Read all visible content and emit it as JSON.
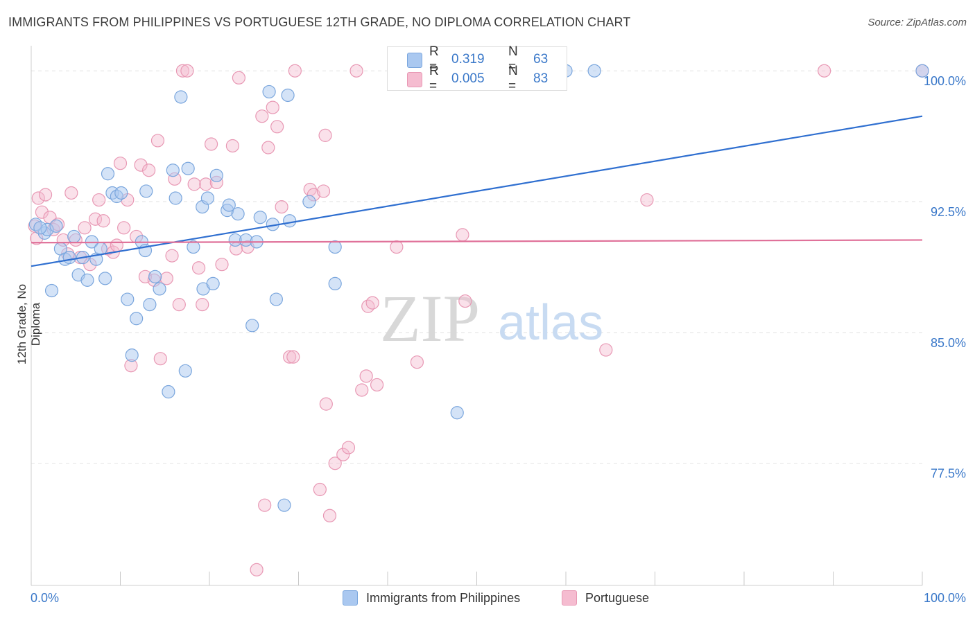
{
  "title": "IMMIGRANTS FROM PHILIPPINES VS PORTUGUESE 12TH GRADE, NO DIPLOMA CORRELATION CHART",
  "source": "Source: ZipAtlas.com",
  "watermark": {
    "zip": "ZIP",
    "atlas": "atlas"
  },
  "stats": {
    "blue": {
      "r_label": "R =",
      "r_value": "0.319",
      "n_label": "N =",
      "n_value": "63"
    },
    "pink": {
      "r_label": "R =",
      "r_value": "0.005",
      "n_label": "N =",
      "n_value": "83"
    }
  },
  "legend": {
    "blue": "Immigrants from Philippines",
    "pink": "Portuguese"
  },
  "colors": {
    "blue_fill": "#aac8f0",
    "blue_stroke": "#7aa6dd",
    "blue_line": "#2f6fd0",
    "pink_fill": "#f5bcd0",
    "pink_stroke": "#e898b4",
    "pink_line": "#e0729a",
    "tick_label": "#3a78c9"
  },
  "chart_data": {
    "type": "scatter",
    "xlabel": "",
    "ylabel": "12th Grade, No Diploma",
    "xlim": [
      0,
      100
    ],
    "ylim": [
      70.5,
      101.2
    ],
    "x_tick_labels": [
      {
        "value": 0,
        "label": "0.0%"
      },
      {
        "value": 100,
        "label": "100.0%"
      }
    ],
    "y_tick_labels": [
      {
        "value": 100,
        "label": "100.0%"
      },
      {
        "value": 92.5,
        "label": "92.5%"
      },
      {
        "value": 85,
        "label": "85.0%"
      },
      {
        "value": 77.5,
        "label": "77.5%"
      }
    ],
    "grid": true,
    "legend_position": "bottom",
    "series": [
      {
        "name": "Immigrants from Philippines",
        "trend": {
          "x": [
            0,
            100
          ],
          "y": [
            88.8,
            97.4
          ]
        },
        "points": [
          [
            0.5,
            91.2
          ],
          [
            1.5,
            90.7
          ],
          [
            1.8,
            90.9
          ],
          [
            2.3,
            87.4
          ],
          [
            2.8,
            91.1
          ],
          [
            3.3,
            89.8
          ],
          [
            3.8,
            89.2
          ],
          [
            4.3,
            89.3
          ],
          [
            4.8,
            90.5
          ],
          [
            5.3,
            88.3
          ],
          [
            5.8,
            89.3
          ],
          [
            6.3,
            88.0
          ],
          [
            6.8,
            90.2
          ],
          [
            7.3,
            89.2
          ],
          [
            7.8,
            89.8
          ],
          [
            8.3,
            88.1
          ],
          [
            8.6,
            94.1
          ],
          [
            9.1,
            93.0
          ],
          [
            9.6,
            92.8
          ],
          [
            10.1,
            93.0
          ],
          [
            10.8,
            86.9
          ],
          [
            11.3,
            83.7
          ],
          [
            11.8,
            85.8
          ],
          [
            12.4,
            90.2
          ],
          [
            12.8,
            89.7
          ],
          [
            12.9,
            93.1
          ],
          [
            13.3,
            86.6
          ],
          [
            13.9,
            88.2
          ],
          [
            14.4,
            87.5
          ],
          [
            15.4,
            81.6
          ],
          [
            15.9,
            94.3
          ],
          [
            16.2,
            92.7
          ],
          [
            16.8,
            98.5
          ],
          [
            17.3,
            82.8
          ],
          [
            17.6,
            94.4
          ],
          [
            18.2,
            89.9
          ],
          [
            19.2,
            92.2
          ],
          [
            19.3,
            87.5
          ],
          [
            19.8,
            92.7
          ],
          [
            20.4,
            87.8
          ],
          [
            20.8,
            94.0
          ],
          [
            22.0,
            92.0
          ],
          [
            22.2,
            92.3
          ],
          [
            22.9,
            90.3
          ],
          [
            23.2,
            91.8
          ],
          [
            24.1,
            90.3
          ],
          [
            24.8,
            85.4
          ],
          [
            25.3,
            90.2
          ],
          [
            25.7,
            91.6
          ],
          [
            26.7,
            98.8
          ],
          [
            27.1,
            91.2
          ],
          [
            27.5,
            86.9
          ],
          [
            28.4,
            75.1
          ],
          [
            28.8,
            98.6
          ],
          [
            29.0,
            91.4
          ],
          [
            31.2,
            92.5
          ],
          [
            34.1,
            89.9
          ],
          [
            34.1,
            87.8
          ],
          [
            47.8,
            80.4
          ],
          [
            60.0,
            100.0
          ],
          [
            63.2,
            100.0
          ],
          [
            100.0,
            100.0
          ],
          [
            1.0,
            91.0
          ]
        ]
      },
      {
        "name": "Portuguese",
        "trend": {
          "x": [
            0,
            100
          ],
          "y": [
            90.15,
            90.3
          ]
        },
        "points": [
          [
            0.4,
            91.1
          ],
          [
            0.8,
            92.7
          ],
          [
            1.2,
            91.9
          ],
          [
            1.6,
            92.9
          ],
          [
            2.1,
            91.6
          ],
          [
            2.5,
            90.9
          ],
          [
            3.0,
            91.2
          ],
          [
            3.6,
            90.3
          ],
          [
            4.1,
            89.5
          ],
          [
            4.5,
            93.0
          ],
          [
            5.0,
            90.3
          ],
          [
            5.5,
            89.3
          ],
          [
            6.0,
            91.0
          ],
          [
            6.6,
            88.9
          ],
          [
            7.2,
            91.5
          ],
          [
            7.6,
            92.6
          ],
          [
            8.1,
            91.4
          ],
          [
            8.6,
            89.8
          ],
          [
            9.2,
            89.6
          ],
          [
            9.6,
            90.0
          ],
          [
            10.0,
            94.7
          ],
          [
            10.4,
            91.0
          ],
          [
            10.8,
            92.6
          ],
          [
            11.2,
            83.1
          ],
          [
            11.8,
            90.5
          ],
          [
            12.3,
            94.6
          ],
          [
            12.8,
            88.2
          ],
          [
            13.2,
            94.3
          ],
          [
            13.8,
            88.0
          ],
          [
            14.2,
            96.0
          ],
          [
            14.5,
            83.5
          ],
          [
            15.2,
            88.1
          ],
          [
            15.8,
            89.4
          ],
          [
            16.1,
            93.8
          ],
          [
            16.6,
            86.6
          ],
          [
            17.0,
            100.0
          ],
          [
            17.5,
            100.0
          ],
          [
            18.3,
            93.5
          ],
          [
            18.8,
            88.7
          ],
          [
            19.2,
            86.6
          ],
          [
            19.6,
            93.5
          ],
          [
            20.2,
            95.8
          ],
          [
            20.8,
            93.6
          ],
          [
            21.4,
            88.9
          ],
          [
            22.6,
            95.7
          ],
          [
            23.0,
            89.8
          ],
          [
            23.3,
            99.6
          ],
          [
            24.3,
            89.9
          ],
          [
            25.3,
            71.4
          ],
          [
            25.9,
            97.4
          ],
          [
            26.2,
            75.1
          ],
          [
            26.6,
            95.6
          ],
          [
            27.1,
            97.9
          ],
          [
            27.6,
            96.8
          ],
          [
            28.1,
            92.2
          ],
          [
            29.0,
            83.6
          ],
          [
            29.4,
            83.6
          ],
          [
            29.6,
            100.0
          ],
          [
            31.3,
            93.2
          ],
          [
            31.7,
            92.9
          ],
          [
            32.4,
            76.0
          ],
          [
            32.8,
            93.1
          ],
          [
            33.0,
            96.3
          ],
          [
            33.1,
            80.9
          ],
          [
            33.5,
            74.5
          ],
          [
            34.1,
            77.5
          ],
          [
            35.0,
            78.0
          ],
          [
            35.6,
            78.4
          ],
          [
            36.5,
            100.0
          ],
          [
            37.1,
            81.7
          ],
          [
            37.6,
            82.5
          ],
          [
            37.8,
            86.5
          ],
          [
            38.3,
            86.7
          ],
          [
            38.8,
            82.0
          ],
          [
            41.0,
            89.9
          ],
          [
            43.3,
            83.3
          ],
          [
            48.4,
            90.6
          ],
          [
            48.7,
            86.8
          ],
          [
            64.5,
            84.0
          ],
          [
            69.1,
            92.6
          ],
          [
            89.0,
            100.0
          ],
          [
            100.0,
            100.0
          ],
          [
            0.6,
            90.4
          ]
        ]
      }
    ]
  }
}
